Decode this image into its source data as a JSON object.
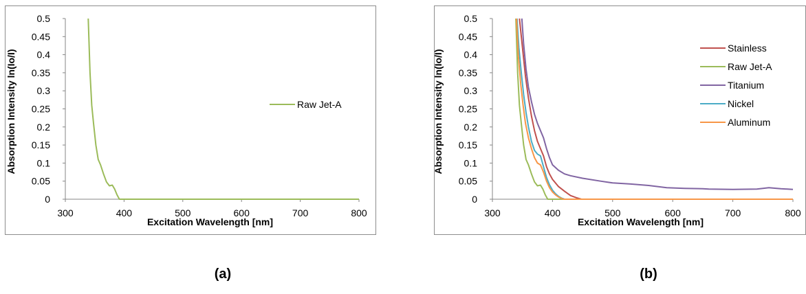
{
  "captions": {
    "a": "(a)",
    "b": "(b)"
  },
  "colors": {
    "Stainless": "#c0504d",
    "Raw Jet-A": "#9bbb59",
    "Titanium": "#8064a2",
    "Nickel": "#4bacc6",
    "Aluminum": "#f79646",
    "axis": "#868686"
  },
  "chart_data": [
    {
      "type": "line",
      "title": "",
      "xlabel": "Excitation Wavelength [nm]",
      "ylabel": "Absorption  Intensity ln(Io/I)",
      "xlim": [
        300,
        800
      ],
      "ylim": [
        0,
        0.5
      ],
      "xticks": [
        "300",
        "400",
        "500",
        "600",
        "700",
        "800"
      ],
      "yticks": [
        "0",
        "0.05",
        "0.1",
        "0.15",
        "0.2",
        "0.25",
        "0.3",
        "0.35",
        "0.4",
        "0.45",
        "0.5"
      ],
      "legend": "right",
      "series": [
        {
          "name": "Raw Jet-A",
          "x": [
            339,
            342,
            345,
            348,
            352,
            356,
            360,
            365,
            370,
            375,
            380,
            384,
            388,
            392,
            800
          ],
          "y": [
            0.5,
            0.35,
            0.26,
            0.21,
            0.15,
            0.11,
            0.095,
            0.07,
            0.048,
            0.037,
            0.039,
            0.028,
            0.012,
            0.0,
            0.0
          ]
        }
      ]
    },
    {
      "type": "line",
      "title": "",
      "xlabel": "Excitation Wavelength [nm]",
      "ylabel": "Absorption  Intensity ln(Io/I)",
      "xlim": [
        300,
        800
      ],
      "ylim": [
        0,
        0.5
      ],
      "xticks": [
        "300",
        "400",
        "500",
        "600",
        "700",
        "800"
      ],
      "yticks": [
        "0",
        "0.05",
        "0.1",
        "0.15",
        "0.2",
        "0.25",
        "0.3",
        "0.35",
        "0.4",
        "0.45",
        "0.5"
      ],
      "legend": "right",
      "series": [
        {
          "name": "Stainless",
          "x": [
            345,
            350,
            355,
            360,
            365,
            370,
            375,
            380,
            385,
            390,
            395,
            400,
            410,
            420,
            430,
            440,
            448,
            800
          ],
          "y": [
            0.5,
            0.42,
            0.34,
            0.28,
            0.23,
            0.19,
            0.16,
            0.14,
            0.12,
            0.09,
            0.07,
            0.055,
            0.035,
            0.022,
            0.01,
            0.004,
            0.0,
            0.0
          ]
        },
        {
          "name": "Raw Jet-A",
          "x": [
            339,
            342,
            345,
            348,
            352,
            356,
            360,
            365,
            370,
            375,
            380,
            384,
            388,
            392,
            800
          ],
          "y": [
            0.5,
            0.35,
            0.26,
            0.21,
            0.15,
            0.11,
            0.095,
            0.07,
            0.048,
            0.037,
            0.039,
            0.028,
            0.012,
            0.0,
            0.0
          ]
        },
        {
          "name": "Titanium",
          "x": [
            349,
            352,
            356,
            360,
            365,
            370,
            375,
            380,
            385,
            390,
            395,
            400,
            410,
            420,
            430,
            450,
            480,
            500,
            530,
            560,
            590,
            620,
            650,
            660,
            700,
            740,
            760,
            780,
            800
          ],
          "y": [
            0.5,
            0.43,
            0.36,
            0.31,
            0.27,
            0.235,
            0.21,
            0.19,
            0.17,
            0.14,
            0.115,
            0.095,
            0.08,
            0.07,
            0.065,
            0.058,
            0.05,
            0.045,
            0.042,
            0.038,
            0.032,
            0.03,
            0.029,
            0.028,
            0.027,
            0.028,
            0.032,
            0.029,
            0.027
          ]
        },
        {
          "name": "Nickel",
          "x": [
            341,
            344,
            348,
            352,
            356,
            360,
            365,
            370,
            375,
            380,
            385,
            390,
            395,
            400,
            405,
            410,
            415,
            420,
            800
          ],
          "y": [
            0.5,
            0.42,
            0.35,
            0.29,
            0.24,
            0.2,
            0.16,
            0.135,
            0.125,
            0.12,
            0.09,
            0.06,
            0.04,
            0.025,
            0.015,
            0.008,
            0.003,
            0.0,
            0.0
          ]
        },
        {
          "name": "Aluminum",
          "x": [
            340,
            343,
            347,
            351,
            355,
            360,
            365,
            370,
            375,
            380,
            385,
            390,
            395,
            400,
            405,
            410,
            418,
            800
          ],
          "y": [
            0.5,
            0.4,
            0.32,
            0.26,
            0.21,
            0.17,
            0.14,
            0.115,
            0.1,
            0.095,
            0.075,
            0.05,
            0.032,
            0.02,
            0.012,
            0.006,
            0.0,
            0.0
          ]
        }
      ]
    }
  ]
}
